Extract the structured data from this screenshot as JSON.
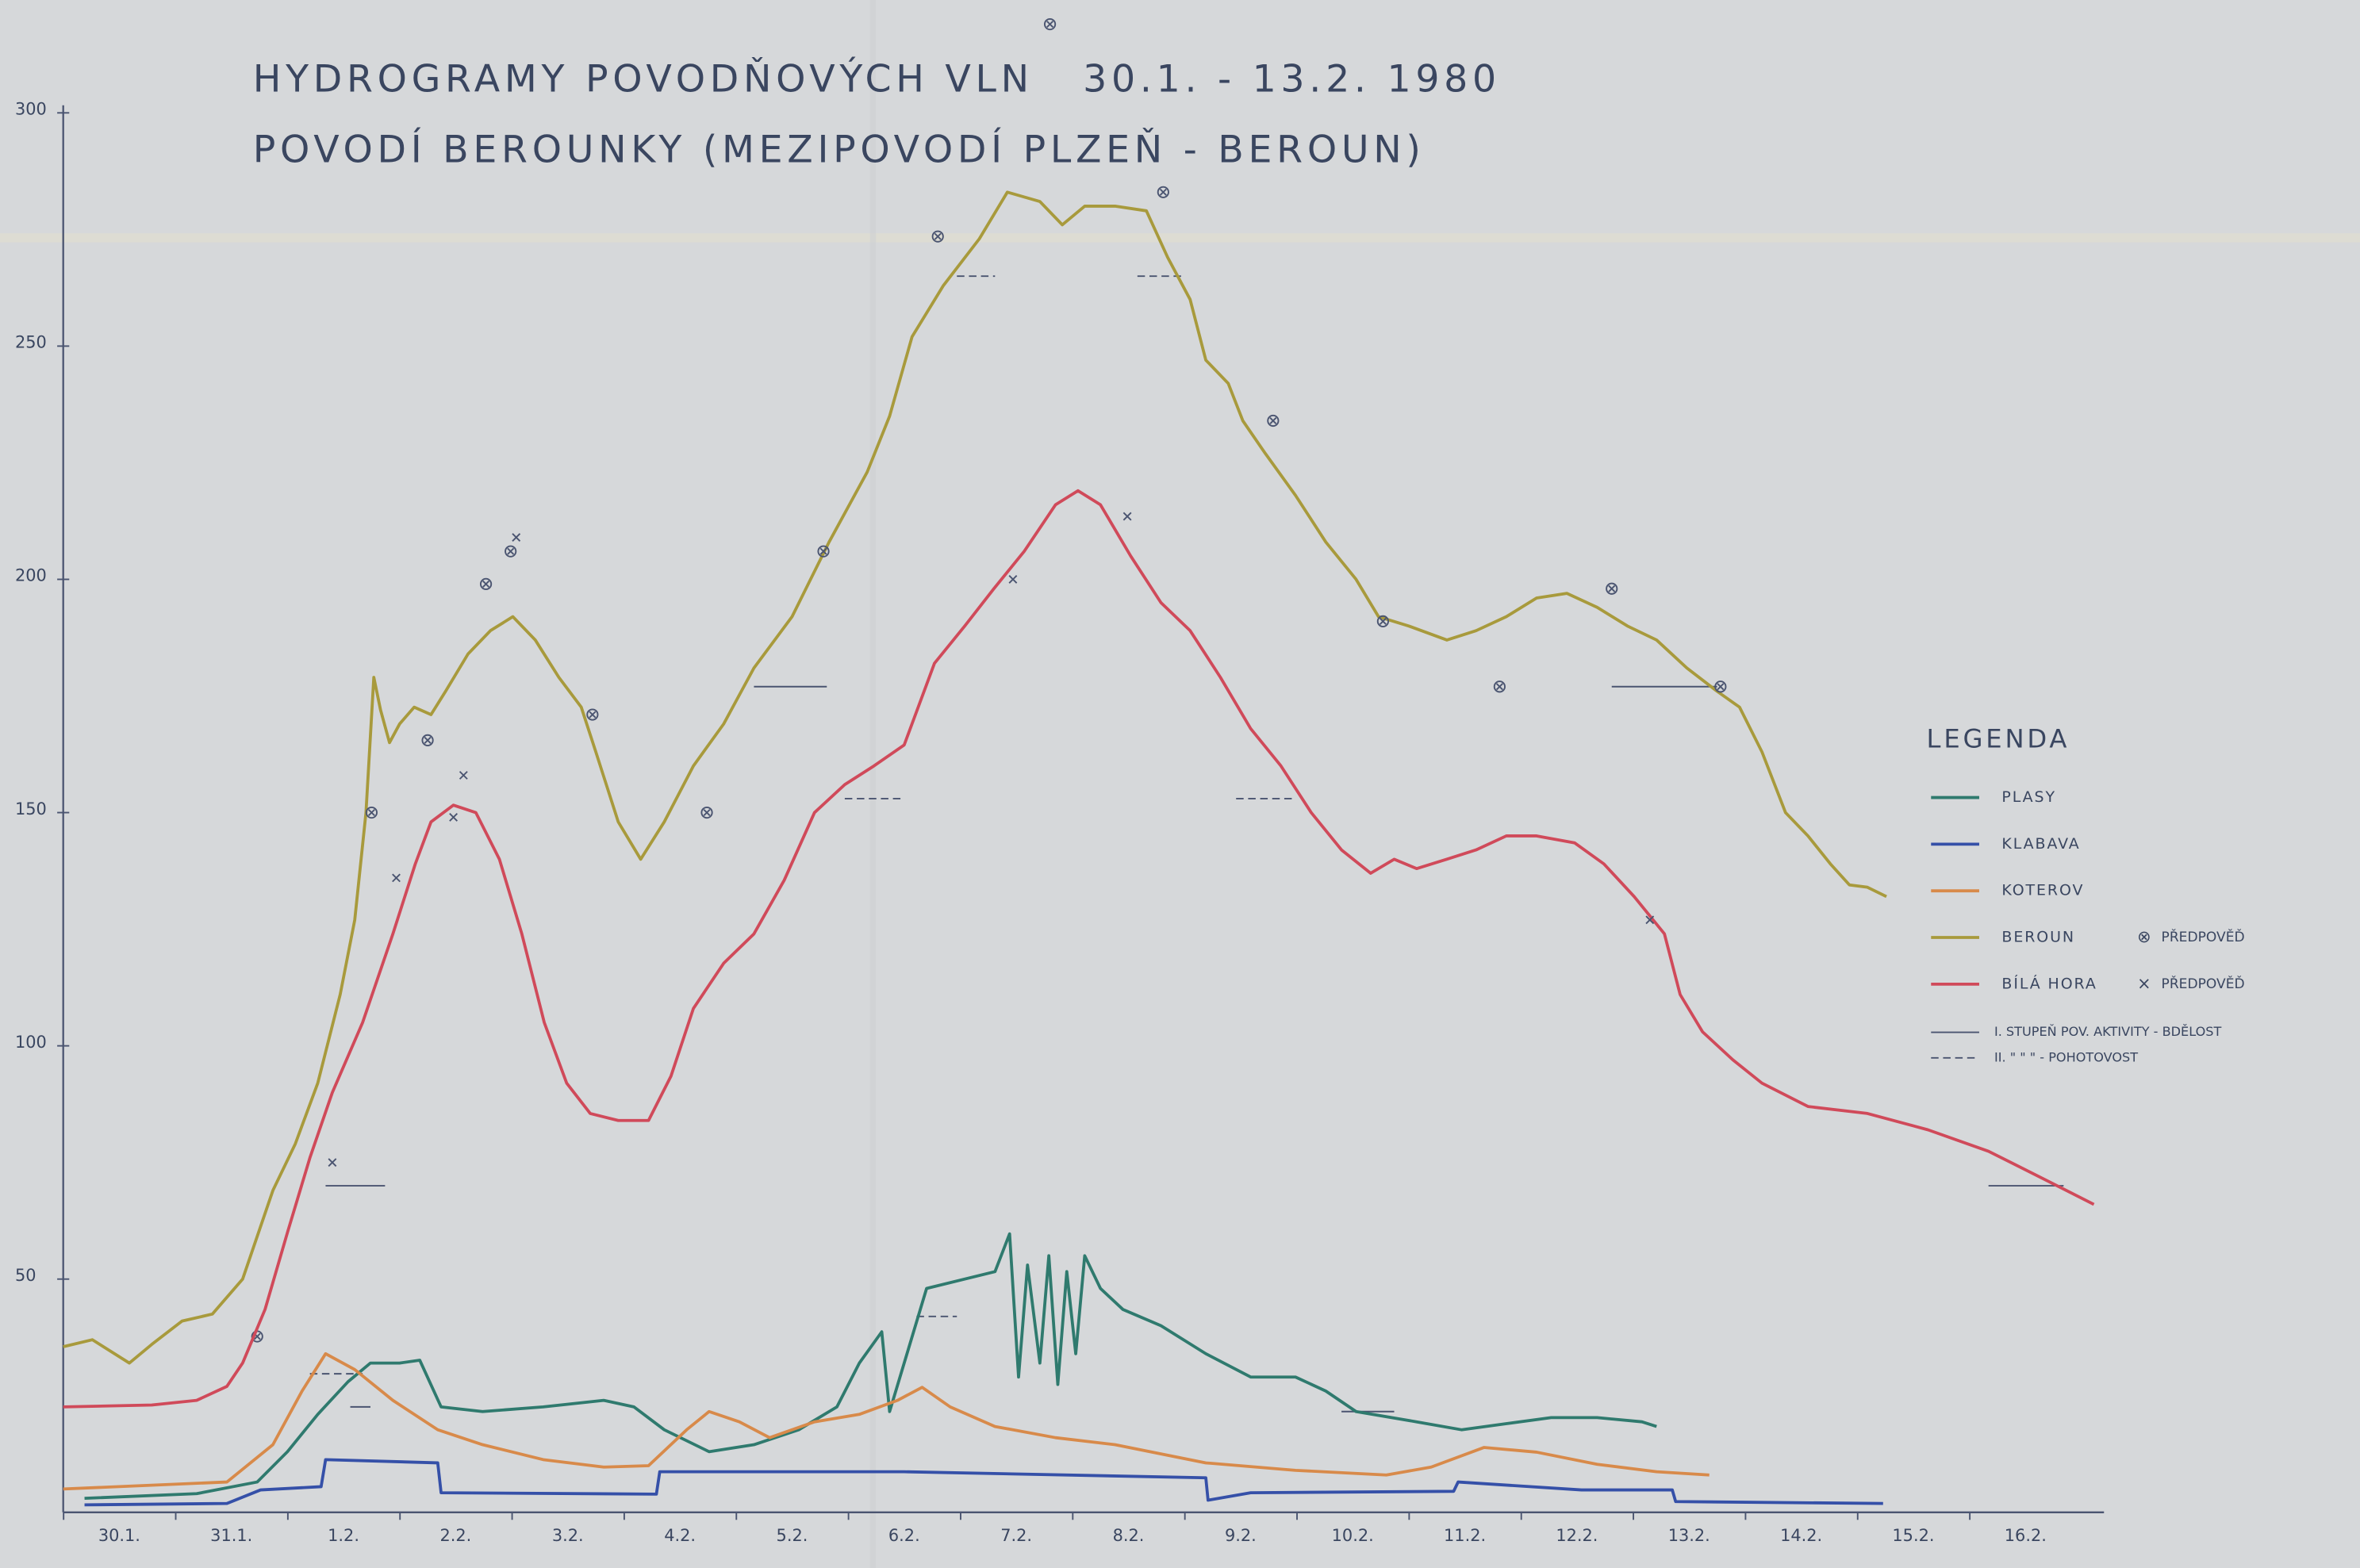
{
  "chart_data": {
    "type": "line",
    "title": "HYDROGRAMY POVODŇOVÝCH VLN   30.1. - 13.2. 1980",
    "subtitle": "POVODÍ BEROUNKY (MEZIPOVODÍ PLZEŇ - BEROUN)",
    "legend_title": "LEGENDA",
    "xlim": [
      0,
      18.2
    ],
    "ylim": [
      0,
      300
    ],
    "yticks": [
      50,
      100,
      150,
      200,
      250,
      300
    ],
    "xticks": [
      {
        "value": 0.5,
        "label": "30.1."
      },
      {
        "value": 1.5,
        "label": "31.1."
      },
      {
        "value": 2.5,
        "label": "1.2."
      },
      {
        "value": 3.5,
        "label": "2.2."
      },
      {
        "value": 4.5,
        "label": "3.2."
      },
      {
        "value": 5.5,
        "label": "4.2."
      },
      {
        "value": 6.5,
        "label": "5.2."
      },
      {
        "value": 7.5,
        "label": "6.2."
      },
      {
        "value": 8.5,
        "label": "7.2."
      },
      {
        "value": 9.5,
        "label": "8.2."
      },
      {
        "value": 10.5,
        "label": "9.2."
      },
      {
        "value": 11.5,
        "label": "10.2."
      },
      {
        "value": 12.5,
        "label": "11.2."
      },
      {
        "value": 13.5,
        "label": "12.2."
      },
      {
        "value": 14.5,
        "label": "13.2."
      },
      {
        "value": 15.5,
        "label": "14.2."
      },
      {
        "value": 16.5,
        "label": "15.2."
      },
      {
        "value": 17.5,
        "label": "16.2."
      }
    ],
    "level_legend": [
      "I. STUPEŇ POV. AKTIVITY - BDĚLOST",
      "II. \" \" \" - POHOTOVOST"
    ],
    "series": [
      {
        "name": "PLASY",
        "color": "#2f7a6e",
        "x": [
          0.19,
          1.19,
          1.73,
          2,
          2.27,
          2.54,
          2.74,
          3,
          3.18,
          3.37,
          3.74,
          4.28,
          4.82,
          5.09,
          5.36,
          5.76,
          6.16,
          6.56,
          6.9,
          7.1,
          7.3,
          7.37,
          7.5,
          7.7,
          8.04,
          8.31,
          8.44,
          8.52,
          8.6,
          8.71,
          8.79,
          8.87,
          8.95,
          9.03,
          9.11,
          9.25,
          9.45,
          9.79,
          10.19,
          10.59,
          10.99,
          11.26,
          11.53,
          12.07,
          12.47,
          12.87,
          13.27,
          13.68,
          14.08,
          14.21
        ],
        "values": [
          3,
          4,
          6.5,
          13,
          21,
          28,
          32,
          32,
          32.6,
          22.6,
          21.6,
          22.6,
          24,
          22.6,
          17.7,
          13,
          14.5,
          17.7,
          22.6,
          32,
          38.7,
          21.6,
          32,
          48,
          50,
          51.6,
          59.7,
          29,
          53,
          32,
          55,
          27.4,
          51.6,
          34,
          55,
          48,
          43.5,
          40,
          34,
          29,
          29,
          26,
          21.6,
          19.4,
          17.7,
          19,
          20.3,
          20.3,
          19.4,
          18.4
        ],
        "levels": [
          {
            "value": 21.6,
            "spans": [
              [
                11.4,
                11.87
              ]
            ]
          },
          {
            "value": 42,
            "spans": [
              [
                7.61,
                7.97
              ]
            ]
          }
        ]
      },
      {
        "name": "KLABAVA",
        "color": "#3550a8",
        "x": [
          0.19,
          1.46,
          1.76,
          2.3,
          2.34,
          3.34,
          3.37,
          5.29,
          5.32,
          7.5,
          10.19,
          10.21,
          10.59,
          12.4,
          12.44,
          13.54,
          14.35,
          14.38,
          16.23
        ],
        "values": [
          1.6,
          1.9,
          4.8,
          5.5,
          11.3,
          10.6,
          4.2,
          3.9,
          8.7,
          8.7,
          7.4,
          2.6,
          4.2,
          4.5,
          6.5,
          4.8,
          4.8,
          2.3,
          1.9
        ]
      },
      {
        "name": "KOTEROV",
        "color": "#d88a4a",
        "x": [
          0,
          1.46,
          1.87,
          2.13,
          2.34,
          2.6,
          2.94,
          3.34,
          3.74,
          4.28,
          4.82,
          5.22,
          5.56,
          5.76,
          6.03,
          6.3,
          6.7,
          7.1,
          7.44,
          7.66,
          7.91,
          8.31,
          8.85,
          9.38,
          10.19,
          10.99,
          11.8,
          12.2,
          12.67,
          13.14,
          13.68,
          14.21,
          14.68
        ],
        "values": [
          5,
          6.5,
          14.5,
          26,
          34,
          30.6,
          24,
          17.7,
          14.5,
          11.3,
          9.7,
          10,
          17.7,
          21.6,
          19.4,
          16,
          19.4,
          21,
          24,
          26.8,
          22.6,
          18.4,
          16,
          14.5,
          10.6,
          9,
          8,
          9.7,
          13.9,
          12.9,
          10.3,
          8.7,
          8
        ],
        "levels": [
          {
            "value": 22.6,
            "spans": [
              [
                2.56,
                2.74
              ]
            ]
          },
          {
            "value": 29.7,
            "spans": [
              [
                2.2,
                2.67
              ]
            ]
          }
        ]
      },
      {
        "name": "BEROUN",
        "color": "#a89a3c",
        "forecast_label": "PŘEDPOVĚĎ",
        "x": [
          0,
          0.26,
          0.59,
          0.79,
          1.06,
          1.33,
          1.6,
          1.87,
          2.07,
          2.27,
          2.47,
          2.6,
          2.7,
          2.77,
          2.83,
          2.91,
          3,
          3.13,
          3.28,
          3.41,
          3.61,
          3.81,
          4.01,
          4.21,
          4.42,
          4.62,
          4.75,
          4.95,
          5.15,
          5.36,
          5.62,
          5.89,
          6.16,
          6.5,
          6.83,
          7.17,
          7.37,
          7.57,
          7.85,
          8.17,
          8.42,
          8.71,
          8.91,
          9.11,
          9.38,
          9.66,
          9.85,
          10.05,
          10.19,
          10.39,
          10.52,
          10.72,
          10.99,
          11.26,
          11.53,
          11.73,
          12,
          12.34,
          12.6,
          12.87,
          13.14,
          13.41,
          13.68,
          13.95,
          14.21,
          14.48,
          14.75,
          14.95,
          15.15,
          15.36,
          15.56,
          15.76,
          15.93,
          16.09,
          16.26
        ],
        "values": [
          35.5,
          37,
          32,
          36,
          41,
          42.5,
          50,
          69,
          79,
          92,
          111,
          127,
          150,
          179,
          172,
          165,
          169,
          172.6,
          171,
          176,
          184,
          189,
          192,
          187,
          179,
          172.6,
          163,
          148,
          140,
          148,
          160,
          169,
          181,
          192,
          208,
          223,
          235,
          252,
          263,
          273,
          283,
          281,
          276,
          280,
          280,
          279,
          269,
          260,
          247,
          242,
          234,
          227,
          218,
          208,
          200,
          192,
          190,
          187,
          189,
          192,
          196,
          197,
          194,
          190,
          187,
          181,
          176,
          172.6,
          163,
          150,
          145,
          139,
          134.5,
          134,
          132
        ],
        "forecast": {
          "x": [
            1.73,
            2.75,
            3.25,
            3.77,
            3.99,
            4.72,
            5.74,
            6.78,
            7.8,
            8.8,
            9.81,
            10.79,
            11.77,
            12.81,
            13.81,
            14.78
          ],
          "values": [
            37.7,
            150,
            165.5,
            199,
            206,
            171,
            150,
            206,
            273.5,
            319,
            283,
            234,
            191,
            177,
            198,
            177
          ]
        },
        "levels": [
          {
            "value": 177,
            "spans": [
              [
                6.16,
                6.81
              ],
              [
                13.81,
                14.75
              ]
            ]
          },
          {
            "value": 265,
            "spans": [
              [
                7.97,
                8.31
              ],
              [
                9.58,
                9.99
              ]
            ]
          }
        ]
      },
      {
        "name": "BÍLÁ HORA",
        "color": "#d04a5a",
        "forecast_label": "PŘEDPOVĚĎ",
        "x": [
          0,
          0.79,
          1.19,
          1.46,
          1.6,
          1.8,
          2,
          2.2,
          2.4,
          2.67,
          2.94,
          3.14,
          3.28,
          3.48,
          3.68,
          3.89,
          4.09,
          4.29,
          4.49,
          4.7,
          4.95,
          5.22,
          5.42,
          5.62,
          5.89,
          6.16,
          6.43,
          6.7,
          6.97,
          7.23,
          7.5,
          7.77,
          8.04,
          8.3,
          8.57,
          8.85,
          9.05,
          9.25,
          9.52,
          9.79,
          10.05,
          10.32,
          10.59,
          10.86,
          11.13,
          11.4,
          11.66,
          11.87,
          12.07,
          12.34,
          12.6,
          12.87,
          13.14,
          13.48,
          13.74,
          14.01,
          14.28,
          14.42,
          14.62,
          14.89,
          15.15,
          15.56,
          16.09,
          16.63,
          17.17,
          17.7,
          18.11
        ],
        "values": [
          22.6,
          23,
          24,
          27,
          32,
          43.5,
          60,
          76,
          90,
          105,
          124,
          139,
          148,
          151.6,
          150,
          140,
          124,
          105,
          92,
          85.5,
          84,
          84,
          93.5,
          108,
          117.7,
          124,
          135.5,
          150,
          156,
          160,
          164.5,
          182,
          190,
          198,
          206,
          216,
          219,
          216,
          205,
          195,
          189,
          179,
          168,
          160,
          150,
          142,
          137,
          140,
          138,
          140,
          142,
          145,
          145,
          143.5,
          139,
          132,
          124,
          111,
          103,
          97,
          92,
          87,
          85.5,
          82,
          77.4,
          71,
          66
        ],
        "forecast": {
          "x": [
            2.4,
            2.97,
            3.48,
            3.57,
            4.04,
            8.47,
            9.49,
            14.15
          ],
          "values": [
            75,
            136,
            149,
            158,
            209,
            200,
            213.5,
            127
          ]
        },
        "levels": [
          {
            "value": 70,
            "spans": [
              [
                2.34,
                2.87
              ],
              [
                17.17,
                17.84
              ]
            ]
          },
          {
            "value": 153,
            "spans": [
              [
                6.97,
                7.5
              ],
              [
                10.46,
                10.99
              ]
            ]
          }
        ]
      }
    ]
  }
}
